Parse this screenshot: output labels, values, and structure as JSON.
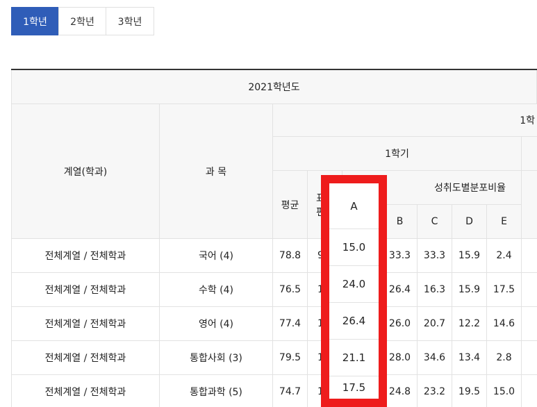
{
  "tabs": [
    {
      "label": "1학년",
      "active": true
    },
    {
      "label": "2학년",
      "active": false
    },
    {
      "label": "3학년",
      "active": false
    }
  ],
  "table": {
    "year": "2021학년도",
    "grade_partial": "1학",
    "semester": "1학기",
    "col_dept": "계열(학과)",
    "col_subject": "과 목",
    "col_avg": "평균",
    "col_std_partial_1": "표",
    "col_std_partial_2": "편",
    "col_dist": "성취도별분포비율",
    "col_a": "A",
    "col_b": "B",
    "col_c": "C",
    "col_d": "D",
    "col_e": "E",
    "rows": [
      {
        "dept": "전체계열 / 전체학과",
        "subject": "국어 (4)",
        "avg": "78.8",
        "std_partial": "9",
        "a": "15.0",
        "b": "33.3",
        "c": "33.3",
        "d": "15.9",
        "e": "2.4"
      },
      {
        "dept": "전체계열 / 전체학과",
        "subject": "수학 (4)",
        "avg": "76.5",
        "std_partial": "1",
        "a": "24.0",
        "b": "26.4",
        "c": "16.3",
        "d": "15.9",
        "e": "17.5"
      },
      {
        "dept": "전체계열 / 전체학과",
        "subject": "영어 (4)",
        "avg": "77.4",
        "std_partial": "1",
        "a": "26.4",
        "b": "26.0",
        "c": "20.7",
        "d": "12.2",
        "e": "14.6"
      },
      {
        "dept": "전체계열 / 전체학과",
        "subject": "통합사회 (3)",
        "avg": "79.5",
        "std_partial": "1",
        "a": "21.1",
        "b": "28.0",
        "c": "34.6",
        "d": "13.4",
        "e": "2.8"
      },
      {
        "dept": "전체계열 / 전체학과",
        "subject": "통합과학 (5)",
        "avg": "74.7",
        "std_partial": "1",
        "a": "17.5",
        "b": "24.8",
        "c": "23.2",
        "d": "19.5",
        "e": "15.0"
      }
    ]
  },
  "colors": {
    "active_tab": "#2f5db8",
    "highlight": "#ee1c1c"
  }
}
